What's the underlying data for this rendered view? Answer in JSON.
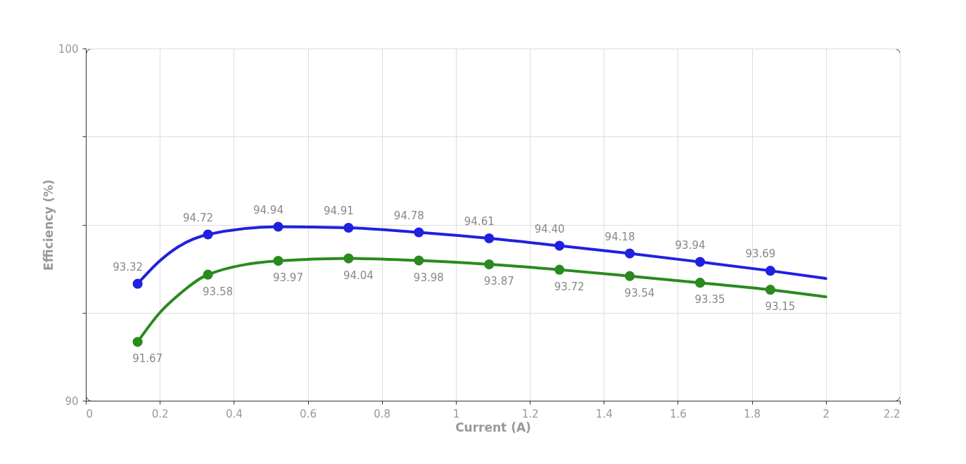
{
  "chart_data": {
    "type": "line",
    "xlabel": "Current (A)",
    "ylabel": "Efficiency (%)",
    "xlim": [
      0,
      2.2
    ],
    "ylim": [
      90,
      100
    ],
    "xticks": [
      0,
      0.2,
      0.4,
      0.6,
      0.8,
      1,
      1.2,
      1.4,
      1.6,
      1.8,
      2,
      2.2
    ],
    "yticks": [
      90,
      {
        "value": 92.5,
        "label": null
      },
      {
        "value": 95,
        "label": null
      },
      {
        "value": 97.5,
        "label": null
      },
      100
    ],
    "grid": true,
    "marker": "circle",
    "line_style": "solid",
    "x": [
      0.14,
      0.2,
      0.25,
      0.33,
      0.52,
      0.71,
      0.9,
      1.09,
      1.28,
      1.47,
      1.66,
      1.85,
      2.0
    ],
    "series": [
      {
        "color": "#2020e0",
        "values": [
          93.32,
          93.97,
          94.37,
          94.72,
          94.94,
          94.91,
          94.78,
          94.61,
          94.4,
          94.18,
          93.94,
          93.69,
          93.47
        ],
        "value_labels": [
          "93.32",
          null,
          null,
          "94.72",
          "94.94",
          "94.91",
          "94.78",
          "94.61",
          "94.40",
          "94.18",
          "93.94",
          "93.69",
          null
        ]
      },
      {
        "color": "#2a8a1e",
        "values": [
          91.67,
          92.5,
          93.0,
          93.58,
          93.97,
          94.04,
          93.98,
          93.87,
          93.72,
          93.54,
          93.35,
          93.15,
          92.95
        ],
        "value_labels": [
          "91.67",
          null,
          null,
          "93.58",
          "93.97",
          "94.04",
          "93.98",
          "93.87",
          "93.72",
          "93.54",
          "93.35",
          "93.15",
          null
        ]
      }
    ]
  }
}
